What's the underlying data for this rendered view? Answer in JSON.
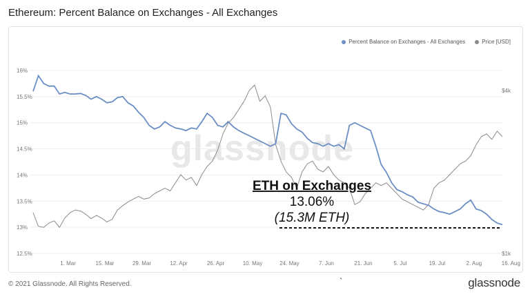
{
  "title": "Ethereum: Percent Balance on Exchanges - All Exchanges",
  "copyright": "© 2021 Glassnode. All Rights Reserved.",
  "brand": "glassnode",
  "watermark": "glassnode",
  "stray_mark": "`",
  "colors": {
    "balance": "#6b8ec5",
    "price": "#8a8a8a",
    "grid": "#eeeeee",
    "axis_text": "#777777"
  },
  "chart_data": {
    "type": "line",
    "title": "Ethereum: Percent Balance on Exchanges - All Exchanges",
    "legend_placement": "top-right",
    "x_range_days": [
      0,
      170
    ],
    "x_ticks": [
      {
        "label": "1. Mar",
        "day": 8
      },
      {
        "label": "15. Mar",
        "day": 22
      },
      {
        "label": "29. Mar",
        "day": 36
      },
      {
        "label": "12. Apr",
        "day": 50
      },
      {
        "label": "26. Apr",
        "day": 64
      },
      {
        "label": "10. May",
        "day": 78
      },
      {
        "label": "24. May",
        "day": 92
      },
      {
        "label": "7. Jun",
        "day": 106
      },
      {
        "label": "21. Jun",
        "day": 120
      },
      {
        "label": "5. Jul",
        "day": 134
      },
      {
        "label": "19. Jul",
        "day": 148
      },
      {
        "label": "2. Aug",
        "day": 162
      },
      {
        "label": "16. Aug",
        "day": 176
      }
    ],
    "y_left": {
      "ticks": [
        "16%",
        "15.5%",
        "15%",
        "14.5%",
        "14%",
        "13.5%",
        "13%",
        "12.5%"
      ],
      "min": 12.5,
      "max": 16
    },
    "y_right": {
      "ticks": [
        "$4k",
        "$1k"
      ],
      "tick_values": [
        4000,
        1000
      ]
    },
    "series": [
      {
        "name": "Percent Balance on Exchanges - All Exchanges",
        "axis": "left",
        "points": [
          [
            0,
            15.6
          ],
          [
            2,
            15.9
          ],
          [
            4,
            15.75
          ],
          [
            6,
            15.7
          ],
          [
            8,
            15.7
          ],
          [
            10,
            15.55
          ],
          [
            12,
            15.58
          ],
          [
            14,
            15.55
          ],
          [
            16,
            15.55
          ],
          [
            18,
            15.56
          ],
          [
            20,
            15.52
          ],
          [
            22,
            15.45
          ],
          [
            24,
            15.5
          ],
          [
            26,
            15.45
          ],
          [
            28,
            15.38
          ],
          [
            30,
            15.4
          ],
          [
            32,
            15.48
          ],
          [
            34,
            15.5
          ],
          [
            36,
            15.38
          ],
          [
            38,
            15.32
          ],
          [
            40,
            15.2
          ],
          [
            42,
            15.1
          ],
          [
            44,
            14.95
          ],
          [
            46,
            14.88
          ],
          [
            48,
            14.92
          ],
          [
            50,
            15.02
          ],
          [
            52,
            14.95
          ],
          [
            54,
            14.9
          ],
          [
            56,
            14.88
          ],
          [
            58,
            14.85
          ],
          [
            60,
            14.9
          ],
          [
            62,
            14.88
          ],
          [
            64,
            15.02
          ],
          [
            66,
            15.18
          ],
          [
            68,
            15.1
          ],
          [
            70,
            14.95
          ],
          [
            72,
            14.92
          ],
          [
            74,
            15.02
          ],
          [
            76,
            14.92
          ],
          [
            78,
            14.85
          ],
          [
            80,
            14.8
          ],
          [
            82,
            14.75
          ],
          [
            84,
            14.7
          ],
          [
            86,
            14.65
          ],
          [
            88,
            14.6
          ],
          [
            90,
            14.55
          ],
          [
            92,
            14.6
          ],
          [
            94,
            15.18
          ],
          [
            96,
            15.15
          ],
          [
            98,
            14.98
          ],
          [
            100,
            14.88
          ],
          [
            102,
            14.82
          ],
          [
            104,
            14.7
          ],
          [
            106,
            14.62
          ],
          [
            108,
            14.6
          ],
          [
            110,
            14.55
          ],
          [
            112,
            14.6
          ],
          [
            114,
            14.55
          ],
          [
            116,
            14.58
          ],
          [
            118,
            14.5
          ],
          [
            120,
            14.95
          ],
          [
            122,
            15.0
          ],
          [
            124,
            14.95
          ],
          [
            126,
            14.9
          ],
          [
            128,
            14.85
          ],
          [
            130,
            14.55
          ],
          [
            132,
            14.2
          ],
          [
            134,
            14.05
          ],
          [
            136,
            13.85
          ],
          [
            138,
            13.72
          ],
          [
            140,
            13.68
          ],
          [
            142,
            13.62
          ],
          [
            144,
            13.58
          ],
          [
            146,
            13.48
          ],
          [
            148,
            13.45
          ],
          [
            150,
            13.42
          ],
          [
            152,
            13.35
          ],
          [
            154,
            13.3
          ],
          [
            156,
            13.28
          ],
          [
            158,
            13.25
          ],
          [
            160,
            13.3
          ],
          [
            162,
            13.35
          ],
          [
            164,
            13.45
          ],
          [
            166,
            13.52
          ],
          [
            168,
            13.35
          ],
          [
            170,
            13.32
          ],
          [
            172,
            13.25
          ],
          [
            174,
            13.15
          ],
          [
            176,
            13.08
          ],
          [
            178,
            13.05
          ]
        ]
      },
      {
        "name": "Price [USD]",
        "axis": "right",
        "points": [
          [
            0,
            1750
          ],
          [
            2,
            1500
          ],
          [
            4,
            1480
          ],
          [
            6,
            1560
          ],
          [
            8,
            1600
          ],
          [
            10,
            1480
          ],
          [
            12,
            1650
          ],
          [
            14,
            1750
          ],
          [
            16,
            1800
          ],
          [
            18,
            1780
          ],
          [
            20,
            1720
          ],
          [
            22,
            1640
          ],
          [
            24,
            1700
          ],
          [
            26,
            1650
          ],
          [
            28,
            1580
          ],
          [
            30,
            1630
          ],
          [
            32,
            1800
          ],
          [
            34,
            1880
          ],
          [
            36,
            1950
          ],
          [
            38,
            2000
          ],
          [
            40,
            2050
          ],
          [
            42,
            2000
          ],
          [
            44,
            2020
          ],
          [
            46,
            2100
          ],
          [
            48,
            2150
          ],
          [
            50,
            2200
          ],
          [
            52,
            2150
          ],
          [
            54,
            2300
          ],
          [
            56,
            2450
          ],
          [
            58,
            2350
          ],
          [
            60,
            2400
          ],
          [
            62,
            2250
          ],
          [
            64,
            2450
          ],
          [
            66,
            2600
          ],
          [
            68,
            2700
          ],
          [
            70,
            2900
          ],
          [
            72,
            3200
          ],
          [
            74,
            3400
          ],
          [
            76,
            3500
          ],
          [
            78,
            3650
          ],
          [
            80,
            3800
          ],
          [
            82,
            4000
          ],
          [
            84,
            4100
          ],
          [
            86,
            3800
          ],
          [
            88,
            3900
          ],
          [
            90,
            3700
          ],
          [
            92,
            3000
          ],
          [
            94,
            2700
          ],
          [
            96,
            2500
          ],
          [
            98,
            2400
          ],
          [
            100,
            2200
          ],
          [
            102,
            2500
          ],
          [
            104,
            2650
          ],
          [
            106,
            2700
          ],
          [
            108,
            2550
          ],
          [
            110,
            2500
          ],
          [
            112,
            2600
          ],
          [
            114,
            2450
          ],
          [
            116,
            2350
          ],
          [
            118,
            2300
          ],
          [
            120,
            2200
          ],
          [
            122,
            1900
          ],
          [
            124,
            1950
          ],
          [
            126,
            2100
          ],
          [
            128,
            2200
          ],
          [
            130,
            2300
          ],
          [
            132,
            2250
          ],
          [
            134,
            2300
          ],
          [
            136,
            2200
          ],
          [
            138,
            2100
          ],
          [
            140,
            2000
          ],
          [
            142,
            1950
          ],
          [
            144,
            1900
          ],
          [
            146,
            1850
          ],
          [
            148,
            1800
          ],
          [
            150,
            1900
          ],
          [
            152,
            2200
          ],
          [
            154,
            2300
          ],
          [
            156,
            2350
          ],
          [
            158,
            2450
          ],
          [
            160,
            2550
          ],
          [
            162,
            2650
          ],
          [
            164,
            2700
          ],
          [
            166,
            2800
          ],
          [
            168,
            3000
          ],
          [
            170,
            3150
          ],
          [
            172,
            3200
          ],
          [
            174,
            3100
          ],
          [
            176,
            3250
          ],
          [
            178,
            3150
          ]
        ]
      }
    ],
    "annotations": [
      {
        "text": "ETH on Exchanges",
        "style": "bold-underline"
      },
      {
        "text": "13.06%"
      },
      {
        "text": "(15.3M ETH)",
        "style": "italic"
      }
    ],
    "grid": true
  }
}
